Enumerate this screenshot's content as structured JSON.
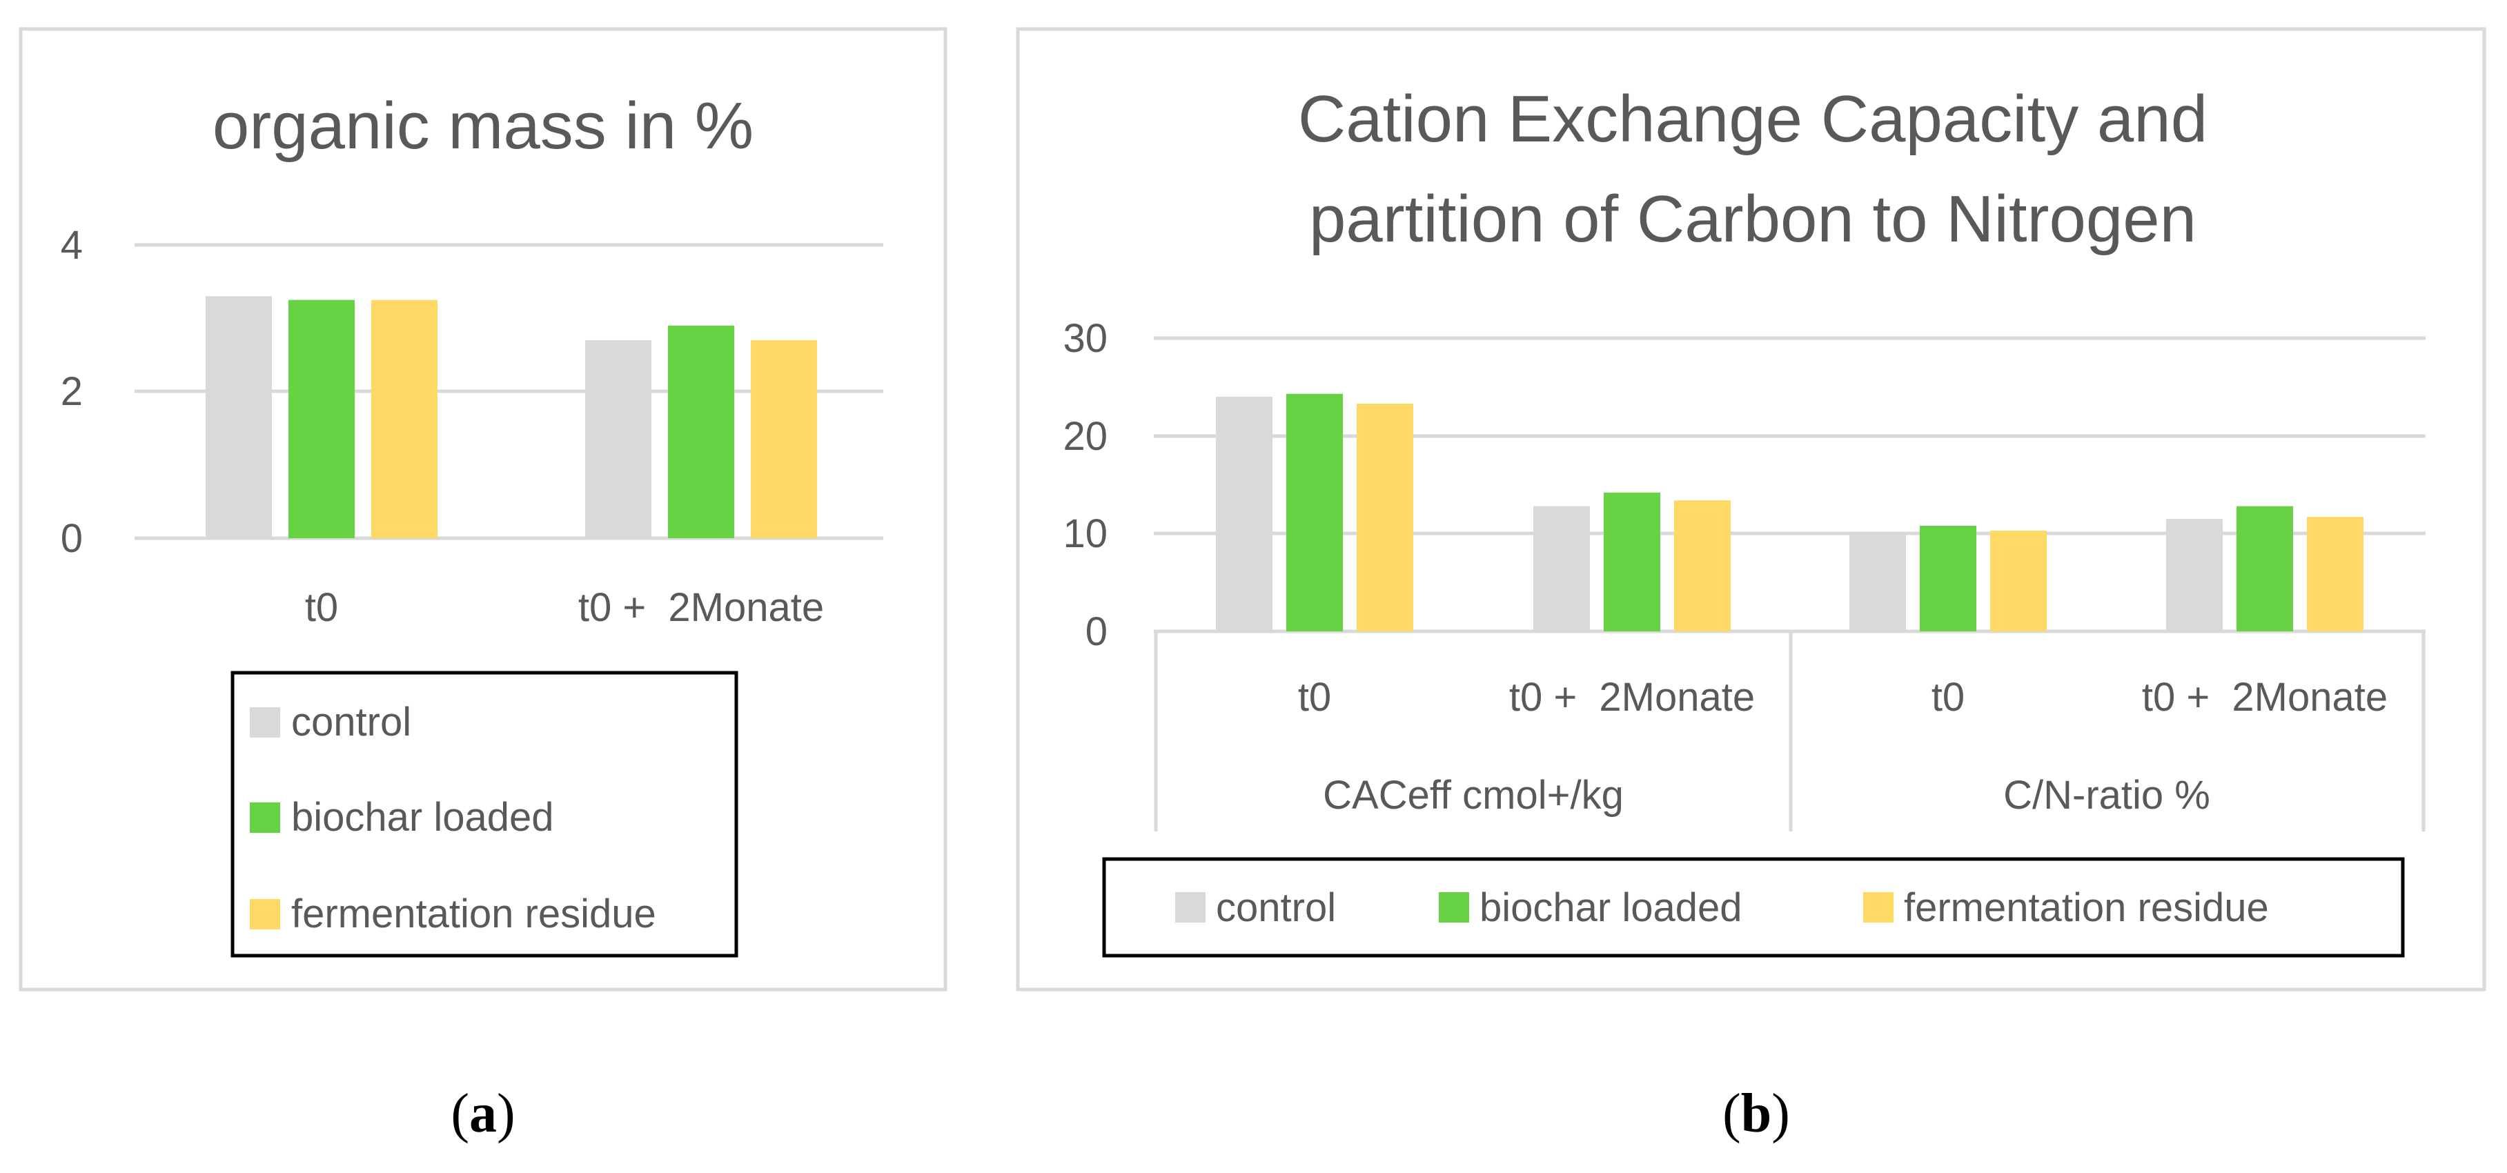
{
  "colors": {
    "control": "#D9D9D9",
    "biochar": "#66D244",
    "fermentation": "#FFD966",
    "grid": "#D9D9D9",
    "text": "#595959",
    "frame": "#D9D9D9",
    "legend_border": "#000000"
  },
  "chart_data": [
    {
      "type": "bar",
      "title": "organic mass in %",
      "panel_label_open": "(",
      "panel_label_letter": "a",
      "panel_label_close": ")",
      "categories": [
        "t0",
        "t0 +  2Monate"
      ],
      "series": [
        {
          "name": "control",
          "values": [
            3.3,
            2.7
          ]
        },
        {
          "name": "biochar loaded",
          "values": [
            3.25,
            2.9
          ]
        },
        {
          "name": "fermentation residue",
          "values": [
            3.25,
            2.7
          ]
        }
      ],
      "ylim": [
        0,
        4
      ],
      "yticks": [
        "0",
        "2",
        "4"
      ],
      "ytick_values": [
        0,
        2,
        4
      ],
      "legend": [
        "control",
        "biochar loaded",
        "fermentation residue"
      ],
      "legend_position": "bottom"
    },
    {
      "type": "bar",
      "title_lines": [
        "Cation Exchange Capacity and",
        "partition of Carbon to Nitrogen"
      ],
      "panel_label_open": "(",
      "panel_label_letter": "b",
      "panel_label_close": ")",
      "groups": [
        {
          "name": "CACeff cmol+/kg",
          "categories": [
            "t0",
            "t0 +  2Monate"
          ]
        },
        {
          "name": "C/N-ratio %",
          "categories": [
            "t0",
            "t0 +  2Monate"
          ]
        }
      ],
      "series": [
        {
          "name": "control",
          "values": [
            24,
            12.8,
            10.1,
            11.5
          ]
        },
        {
          "name": "biochar loaded",
          "values": [
            24.3,
            14.2,
            10.8,
            12.8
          ]
        },
        {
          "name": "fermentation residue",
          "values": [
            23.3,
            13.4,
            10.3,
            11.7
          ]
        }
      ],
      "ylim": [
        0,
        30
      ],
      "yticks": [
        "0",
        "10",
        "20",
        "30"
      ],
      "ytick_values": [
        0,
        10,
        20,
        30
      ],
      "legend": [
        "control",
        "biochar loaded",
        "fermentation residue"
      ],
      "legend_position": "bottom"
    }
  ]
}
